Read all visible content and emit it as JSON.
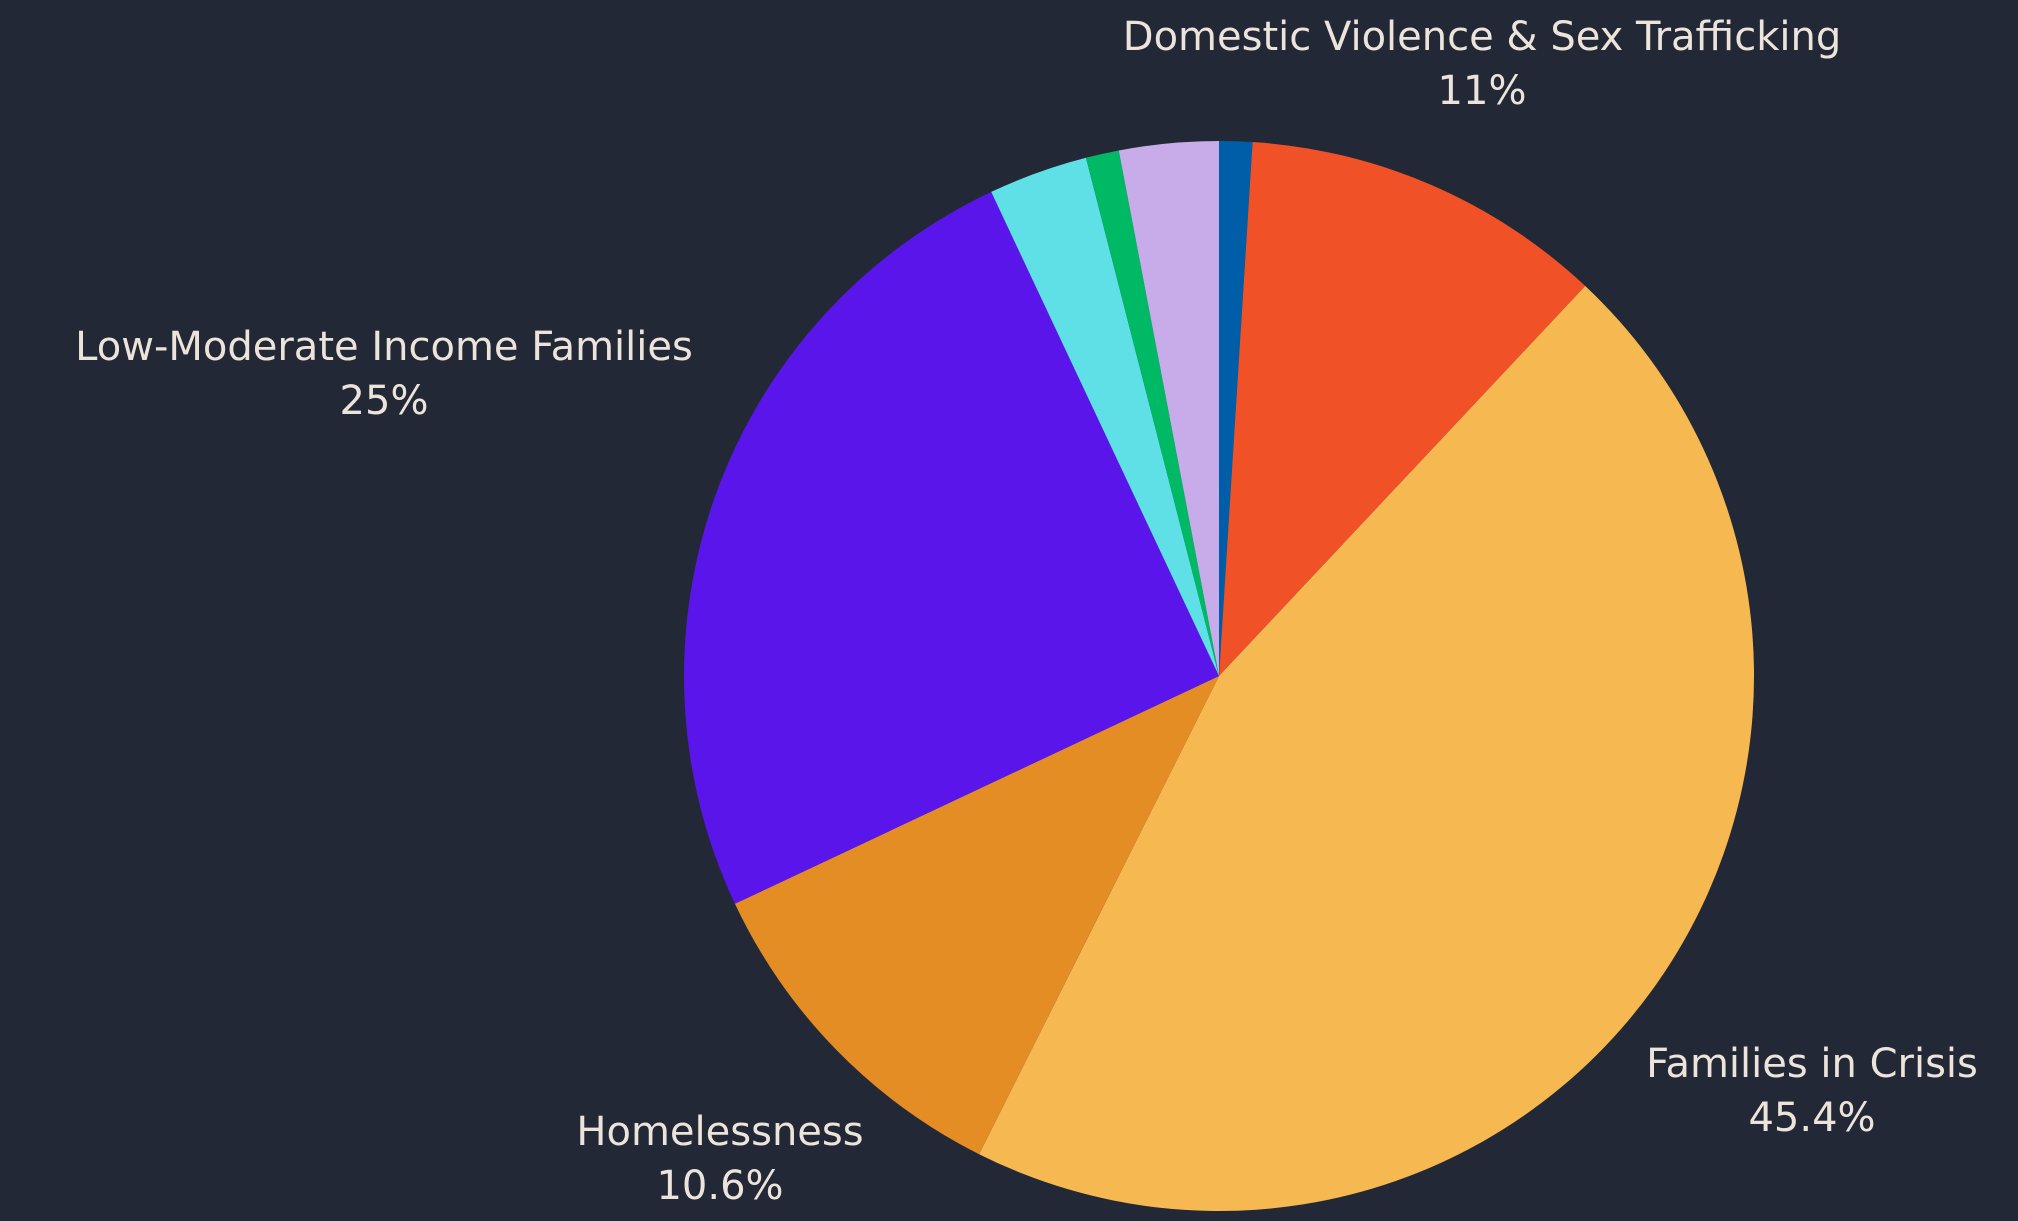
{
  "chart_data": {
    "type": "pie",
    "start_angle_deg": 0,
    "direction": "clockwise",
    "slices": [
      {
        "label": "",
        "value": 1.0,
        "color": "#005ea8",
        "shown_label": null
      },
      {
        "label": "Domestic Violence & Sex Trafficking",
        "value": 11.0,
        "color": "#f05126",
        "shown_label": "11%"
      },
      {
        "label": "Families in Crisis",
        "value": 45.4,
        "color": "#f6b951",
        "shown_label": "45.4%"
      },
      {
        "label": "Homelessness",
        "value": 10.6,
        "color": "#e48d25",
        "shown_label": "10.6%"
      },
      {
        "label": "Low-Moderate Income Families",
        "value": 25.0,
        "color": "#5a16ea",
        "shown_label": "25%"
      },
      {
        "label": "",
        "value": 3.0,
        "color": "#5fe0e6",
        "shown_label": null
      },
      {
        "label": "",
        "value": 1.0,
        "color": "#00b964",
        "shown_label": null
      },
      {
        "label": "",
        "value": 3.0,
        "color": "#c7ace9",
        "shown_label": null
      }
    ],
    "background": "#232836",
    "label_color": "#ece4da"
  }
}
